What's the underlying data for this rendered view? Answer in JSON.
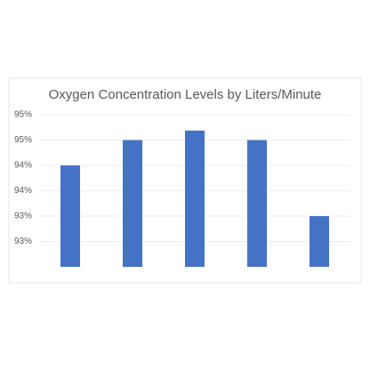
{
  "chart_data": {
    "type": "bar",
    "title": "Oxygen Concentration Levels by Liters/Minute",
    "categories": [
      null,
      null,
      null,
      null,
      null
    ],
    "values": [
      94.2,
      94.6,
      94.75,
      94.6,
      93.4
    ],
    "color": "#4472c4",
    "ylim": [
      92.6,
      95.0
    ],
    "yticks": [
      {
        "value": 93.0,
        "label": "93%"
      },
      {
        "value": 93.4,
        "label": "93%"
      },
      {
        "value": 93.8,
        "label": "94%"
      },
      {
        "value": 94.2,
        "label": "94%"
      },
      {
        "value": 94.6,
        "label": "95%"
      },
      {
        "value": 95.0,
        "label": "95%"
      }
    ],
    "grid": true
  }
}
